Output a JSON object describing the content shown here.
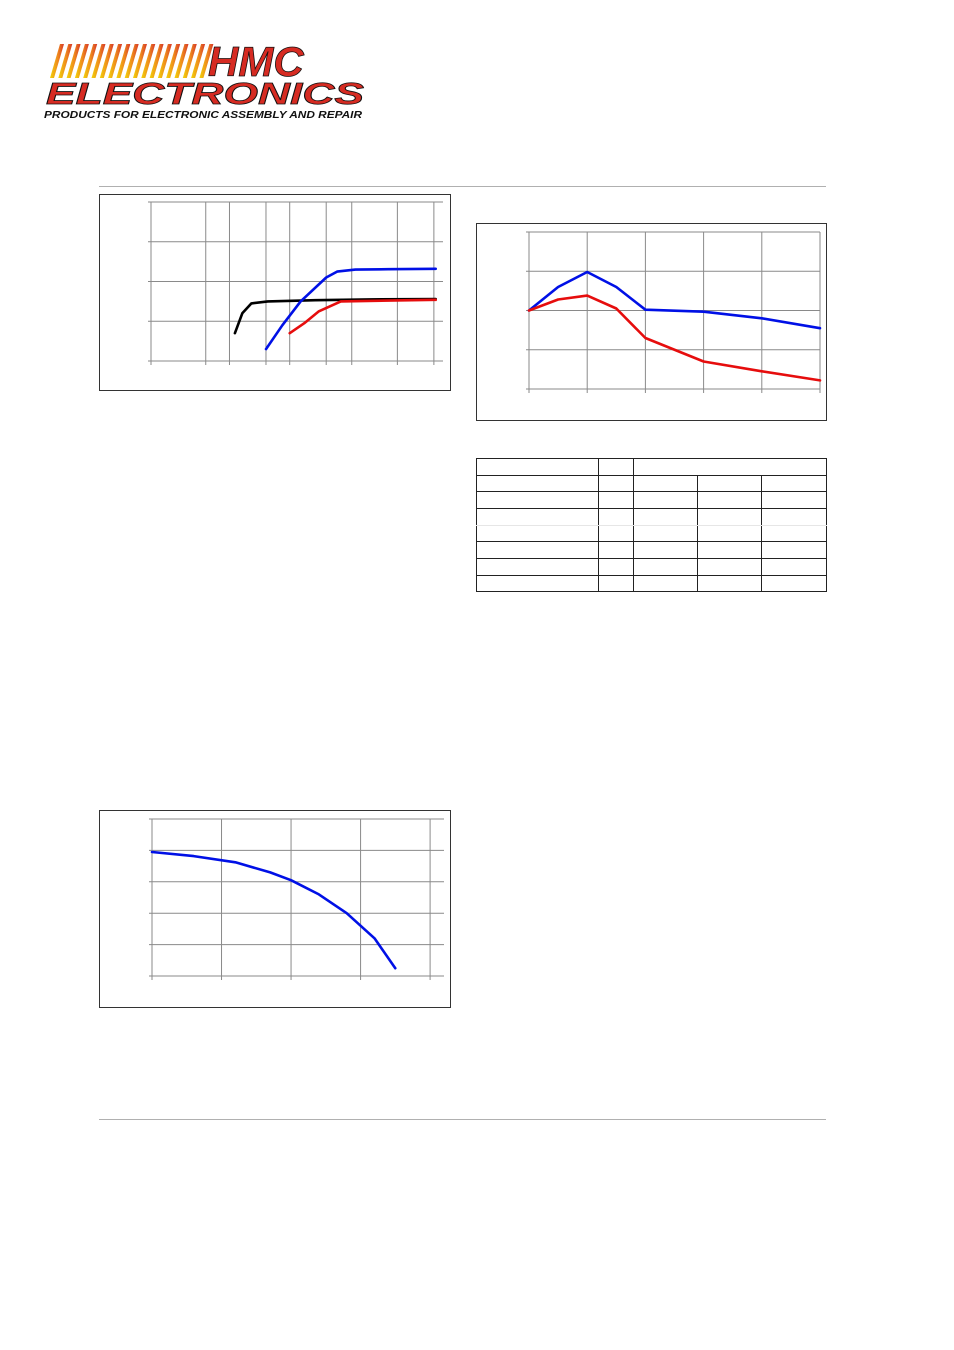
{
  "logo": {
    "brand_line1": "HMC",
    "brand_line2": "ELECTRONICS",
    "tagline": "PRODUCTS FOR ELECTRONIC ASSEMBLY AND REPAIR",
    "colors": {
      "stripe_start": "#f2d40a",
      "stripe_end": "#d6382a",
      "text_red": "#d62b22",
      "tagline_text": "#111111"
    }
  },
  "colors": {
    "blue": "#0010e6",
    "red": "#e60d0d",
    "black": "#000000",
    "grid": "#8a8a8a"
  },
  "chart_data": [
    {
      "type": "line",
      "xlim": [
        0,
        8
      ],
      "ylim": [
        0,
        4
      ],
      "x_gridlines": [
        0,
        1.5,
        2.15,
        3.15,
        3.8,
        4.8,
        5.5,
        6.75,
        7.75
      ],
      "y_gridlines": [
        0,
        1,
        2,
        3,
        4
      ],
      "grid": true,
      "series": [
        {
          "color": "#000000",
          "x": [
            2.3,
            2.5,
            2.75,
            3.2,
            4.5,
            6,
            7.8
          ],
          "y": [
            0.7,
            1.2,
            1.45,
            1.5,
            1.53,
            1.55,
            1.56
          ]
        },
        {
          "color": "#0010e6",
          "x": [
            3.15,
            3.6,
            4.1,
            4.8,
            5.1,
            5.6,
            6.5,
            7.8
          ],
          "y": [
            0.3,
            0.9,
            1.5,
            2.1,
            2.25,
            2.3,
            2.31,
            2.32
          ]
        },
        {
          "color": "#e60d0d",
          "x": [
            3.8,
            4.2,
            4.6,
            5.2,
            6.5,
            7.8
          ],
          "y": [
            0.7,
            0.95,
            1.25,
            1.5,
            1.52,
            1.54
          ]
        }
      ]
    },
    {
      "type": "line",
      "xlim": [
        0,
        5
      ],
      "ylim": [
        0,
        4
      ],
      "x_gridlines": [
        0,
        1,
        2,
        3,
        4,
        5
      ],
      "y_gridlines": [
        0,
        1,
        2,
        3,
        4
      ],
      "grid": true,
      "series": [
        {
          "color": "#0010e6",
          "x": [
            0,
            0.5,
            1,
            1.5,
            2,
            3,
            4,
            5
          ],
          "y": [
            2,
            2.6,
            2.98,
            2.6,
            2.02,
            1.97,
            1.8,
            1.55
          ]
        },
        {
          "color": "#e60d0d",
          "x": [
            0,
            0.5,
            1,
            1.5,
            2,
            3,
            4,
            5
          ],
          "y": [
            2,
            2.28,
            2.38,
            2.05,
            1.3,
            0.7,
            0.45,
            0.22
          ]
        }
      ]
    },
    {
      "type": "line",
      "xlim": [
        0,
        4.2
      ],
      "ylim": [
        0,
        5
      ],
      "x_gridlines": [
        0,
        1,
        2,
        3,
        4
      ],
      "y_gridlines": [
        0,
        1,
        2,
        3,
        4,
        5
      ],
      "grid": true,
      "series": [
        {
          "color": "#0010e6",
          "x": [
            0,
            0.6,
            1.2,
            1.7,
            2,
            2.4,
            2.8,
            3.2,
            3.5
          ],
          "y": [
            3.95,
            3.82,
            3.62,
            3.3,
            3.05,
            2.6,
            2,
            1.2,
            0.25
          ]
        }
      ]
    }
  ],
  "table": {
    "rows": [
      [
        "",
        "",
        "",
        "",
        ""
      ],
      [
        "",
        "",
        "",
        "",
        ""
      ],
      [
        "",
        "",
        "",
        "",
        ""
      ],
      [
        "",
        "",
        "",
        "",
        ""
      ],
      [
        "",
        "",
        "",
        "",
        ""
      ],
      [
        "",
        "",
        "",
        "",
        ""
      ],
      [
        "",
        "",
        "",
        "",
        ""
      ],
      [
        "",
        "",
        "",
        "",
        ""
      ]
    ]
  }
}
